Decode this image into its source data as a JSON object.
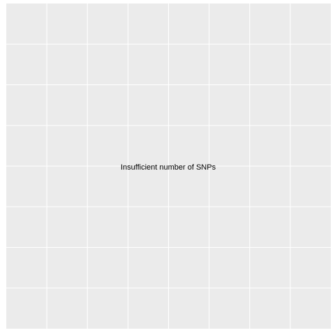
{
  "chart_data": {
    "type": "scatter",
    "series": [],
    "x": [],
    "y": [],
    "grid": true,
    "grid_lines": {
      "vertical_major": 7,
      "horizontal_major": 7
    },
    "annotation": "Insufficient number of SNPs"
  },
  "colors": {
    "panel_background": "#ebebeb",
    "grid_line": "#ffffff",
    "page_background": "#ffffff",
    "text": "#000000"
  }
}
